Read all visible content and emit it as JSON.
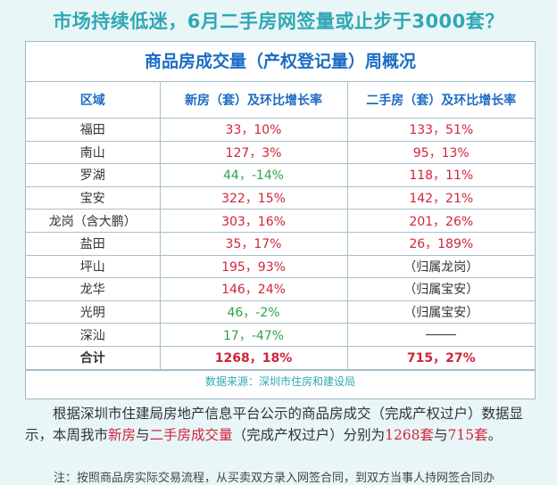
{
  "headline": "市场持续低迷，6月二手房网签量或止步于3000套？",
  "table": {
    "title": "商品房成交量（产权登记量）周概况",
    "headers": [
      "区域",
      "新房（套）及环比增长率",
      "二手房（套）及环比增长率"
    ],
    "rows": [
      {
        "region": "福田",
        "new": "33，10%",
        "second": "133，51%"
      },
      {
        "region": "南山",
        "new": "127，3%",
        "second": "95，13%"
      },
      {
        "region": "罗湖",
        "new": "44，-14%",
        "second": "118，11%"
      },
      {
        "region": "宝安",
        "new": "322，15%",
        "second": "142，21%"
      },
      {
        "region": "龙岗（含大鹏）",
        "new": "303，16%",
        "second": "201，26%"
      },
      {
        "region": "盐田",
        "new": "35，17%",
        "second": "26，189%"
      },
      {
        "region": "坪山",
        "new": "195，93%",
        "second": "（归属龙岗）"
      },
      {
        "region": "龙华",
        "new": "146，24%",
        "second": "（归属宝安）"
      },
      {
        "region": "光明",
        "new": "46，-2%",
        "second": "（归属宝安）"
      },
      {
        "region": "深汕",
        "new": "17，-47%",
        "second": ""
      }
    ],
    "total": {
      "label": "合计",
      "new": "1268，18%",
      "second": "715，27%"
    },
    "source": "数据来源：深圳市住房和建设局"
  },
  "paragraph": {
    "part1": "根据深圳市住建局房地产信息平台公示的商品房成交（完成产权过户）数据显示，本周我市",
    "hl1": "新房",
    "part2": "与",
    "hl2": "二手房成交量",
    "part3": "（完成产权过户）分别为",
    "hl3": "1268套",
    "part4": "与",
    "hl4": "715套",
    "part5": "。"
  },
  "note": "注：按照商品房实际交易流程，从买卖双方录入网签合同，到双方当事人持网签合同办",
  "colors": {
    "accent": "#2fa8b3",
    "title_blue": "#1c6cc5",
    "up_red": "#d1243a",
    "down_green": "#2aa44a"
  }
}
